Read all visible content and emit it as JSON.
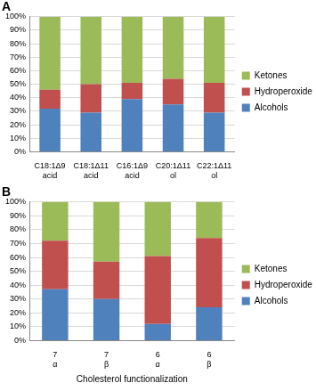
{
  "chart_data": [
    {
      "type": "bar",
      "title": "A",
      "stacked": true,
      "grid": true,
      "legend": "right",
      "categories": [
        "C18:1Δ9 acid",
        "C18:1Δ11 acid",
        "C16:1Δ9 acid",
        "C20:1Δ11 ol",
        "C22:1Δ11 ol"
      ],
      "series": [
        {
          "name": "Alcohols",
          "color": "#4f81bd",
          "values": [
            32,
            29,
            39,
            35,
            29
          ]
        },
        {
          "name": "Hydroperoxides",
          "color": "#c0504d",
          "values": [
            14,
            21,
            12,
            19,
            22
          ]
        },
        {
          "name": "Ketones",
          "color": "#9bbb59",
          "values": [
            54,
            50,
            49,
            46,
            49
          ]
        }
      ],
      "ylim": [
        0,
        100
      ],
      "yticks": [
        {
          "value": 0,
          "label": "0%"
        },
        {
          "value": 10,
          "label": "10%"
        },
        {
          "value": 20,
          "label": "20%"
        },
        {
          "value": 30,
          "label": "30%"
        },
        {
          "value": 40,
          "label": "40%"
        },
        {
          "value": 50,
          "label": "50%"
        },
        {
          "value": 60,
          "label": "60%"
        },
        {
          "value": 70,
          "label": "70%"
        },
        {
          "value": 80,
          "label": "80%"
        },
        {
          "value": 90,
          "label": "90%"
        },
        {
          "value": 100,
          "label": "100%"
        }
      ]
    },
    {
      "type": "bar",
      "title": "B",
      "stacked": true,
      "grid": true,
      "legend": "right",
      "x_label": "Cholesterol functionalization",
      "categories": [
        "7 α",
        "7 β",
        "6 α",
        "6 β"
      ],
      "series": [
        {
          "name": "Alcohols",
          "color": "#4f81bd",
          "values": [
            37,
            30,
            12,
            24
          ]
        },
        {
          "name": "Hydroperoxides",
          "color": "#c0504d",
          "values": [
            35,
            27,
            49,
            50
          ]
        },
        {
          "name": "Ketones",
          "color": "#9bbb59",
          "values": [
            28,
            43,
            39,
            26
          ]
        }
      ],
      "ylim": [
        0,
        100
      ],
      "yticks": [
        {
          "value": 0,
          "label": "0%"
        },
        {
          "value": 10,
          "label": "10%"
        },
        {
          "value": 20,
          "label": "20%"
        },
        {
          "value": 30,
          "label": "30%"
        },
        {
          "value": 40,
          "label": "40%"
        },
        {
          "value": 50,
          "label": "50%"
        },
        {
          "value": 60,
          "label": "60%"
        },
        {
          "value": 70,
          "label": "70%"
        },
        {
          "value": 80,
          "label": "80%"
        },
        {
          "value": 90,
          "label": "90%"
        },
        {
          "value": 100,
          "label": "100%"
        }
      ]
    }
  ]
}
